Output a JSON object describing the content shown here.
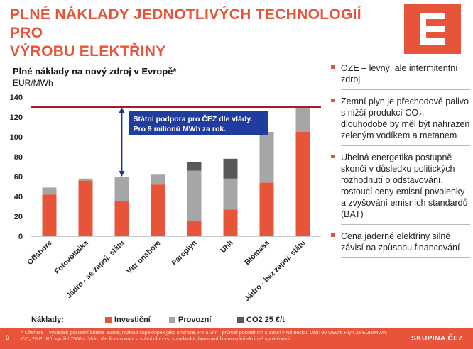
{
  "slide": {
    "title_line1": "PLNÉ NÁKLADY JEDNOTLIVÝCH TECHNOLOGIÍ PRO",
    "title_line2": "VÝROBU ELEKTŘINY"
  },
  "colors": {
    "accent": "#e8543a",
    "investment": "#e8543a",
    "operating": "#a6a6a6",
    "co2": "#595959",
    "annotation": "#1a3399"
  },
  "chart_data": {
    "type": "bar",
    "stacked": true,
    "title": "Plné náklady na nový zdroj v Evropě*",
    "ylabel": "EUR/MWh",
    "xlabel": "",
    "ylim": [
      0,
      140
    ],
    "yticks": [
      0,
      20,
      40,
      60,
      80,
      100,
      120,
      140
    ],
    "grid": false,
    "legend_position": "bottom",
    "categories": [
      "Offshore",
      "Fotovoltaika",
      "Jádro - se zapoj. státu",
      "Vítr onshore",
      "Paroplyn",
      "Uhlí",
      "Biomasa",
      "Jádro - bez zapoj. státu"
    ],
    "series": [
      {
        "name": "Investiční",
        "values": [
          42,
          56,
          35,
          52,
          15,
          27,
          54,
          105
        ]
      },
      {
        "name": "Provozní",
        "values": [
          7,
          2,
          25,
          10,
          51,
          31,
          51,
          25
        ]
      },
      {
        "name": "CO2 25 €/t",
        "values": [
          0,
          0,
          0,
          0,
          9,
          20,
          0,
          0
        ]
      }
    ],
    "reference_line": 130,
    "annotation": {
      "line1": "Státní podpora pro ČEZ dle vlády.",
      "line2": "Pro 9 milionů MWh za rok.",
      "from": 60,
      "to": 130
    }
  },
  "legend": {
    "label": "Náklady:"
  },
  "bullets": [
    "OZE – levný, ale intermitentní zdroj",
    "Zemní plyn je přechodové palivo s nižší produkcí CO₂, dlouhodobě by měl být nahrazen zeleným vodíkem a metanem",
    "Uhelná energetika postupně skončí v důsledku politických rozhodnutí o odstavování, rostoucí ceny emisní povolenky a zvyšování emisních standardů (BAT)",
    "Cena jaderné elektřiny silně závisí na způsobu financování"
  ],
  "footer": {
    "page": "9",
    "note": "* Offshore – výsledek poslední britské aukce; rozklad capex/opex jako onshore. PV a vítr – průměr posledních 5 aukcí v Německu; Uhlí: 90 USD/t; Plyn 25 EUR/MWh; CO₂ 25 EUR/t, využití 7500h; Jádro dle financování – státní dluh vs. standardní, bankovní financování akciové společnosti",
    "brand": "SKUPINA ČEZ"
  }
}
